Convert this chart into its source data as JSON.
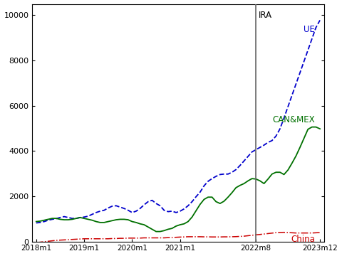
{
  "ylim": [
    0,
    10500
  ],
  "yticks": [
    0,
    2000,
    4000,
    6000,
    8000,
    10000
  ],
  "ira_label": "IRA",
  "background_color": "#ffffff",
  "line_UE_color": "#0000cc",
  "line_CANMEX_color": "#007000",
  "line_China_color": "#cc0000",
  "label_UE": "UE",
  "label_CANMEX": "CAN&MEX",
  "label_China": "China",
  "UE": [
    820,
    840,
    880,
    940,
    980,
    1010,
    1060,
    1100,
    1060,
    1020,
    1020,
    1060,
    1080,
    1120,
    1200,
    1280,
    1340,
    1380,
    1480,
    1560,
    1580,
    1520,
    1460,
    1380,
    1280,
    1340,
    1460,
    1620,
    1760,
    1820,
    1680,
    1580,
    1380,
    1320,
    1340,
    1280,
    1340,
    1440,
    1580,
    1760,
    1980,
    2180,
    2460,
    2660,
    2780,
    2880,
    2960,
    2980,
    2980,
    3060,
    3180,
    3360,
    3560,
    3760,
    3960,
    4060,
    4160,
    4260,
    4380,
    4460,
    4660,
    4980,
    5460,
    5960,
    6460,
    6960,
    7460,
    7960,
    8460,
    8960,
    9460,
    9780
  ],
  "CANMEX": [
    880,
    900,
    940,
    980,
    1020,
    1020,
    980,
    960,
    960,
    980,
    1020,
    1060,
    1020,
    980,
    940,
    880,
    840,
    840,
    880,
    920,
    960,
    980,
    980,
    960,
    880,
    840,
    780,
    740,
    640,
    540,
    440,
    440,
    480,
    540,
    580,
    680,
    740,
    780,
    880,
    1080,
    1360,
    1640,
    1860,
    1960,
    1960,
    1760,
    1680,
    1780,
    1960,
    2160,
    2380,
    2480,
    2560,
    2680,
    2780,
    2760,
    2680,
    2560,
    2760,
    2980,
    3060,
    3060,
    2960,
    3160,
    3460,
    3780,
    4160,
    4560,
    4960,
    5060,
    5060,
    4980
  ],
  "China": [
    -50,
    -30,
    -10,
    10,
    30,
    50,
    60,
    70,
    80,
    90,
    100,
    110,
    120,
    120,
    120,
    120,
    120,
    120,
    120,
    130,
    130,
    140,
    140,
    150,
    150,
    150,
    150,
    160,
    160,
    160,
    160,
    160,
    160,
    170,
    175,
    185,
    195,
    200,
    210,
    210,
    210,
    210,
    205,
    205,
    200,
    200,
    200,
    205,
    205,
    210,
    215,
    225,
    235,
    255,
    275,
    295,
    310,
    330,
    350,
    370,
    390,
    400,
    405,
    395,
    385,
    375,
    375,
    375,
    375,
    375,
    385,
    395
  ]
}
